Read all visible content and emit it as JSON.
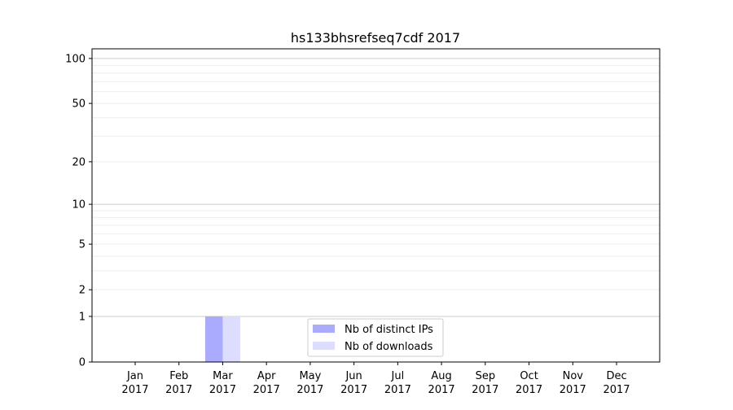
{
  "chart_data": {
    "type": "bar",
    "title": "hs133bhsrefseq7cdf 2017",
    "xlabel": "",
    "ylabel": "",
    "categories": [
      "Jan\n2017",
      "Feb\n2017",
      "Mar\n2017",
      "Apr\n2017",
      "May\n2017",
      "Jun\n2017",
      "Jul\n2017",
      "Aug\n2017",
      "Sep\n2017",
      "Oct\n2017",
      "Nov\n2017",
      "Dec\n2017"
    ],
    "category_labels": [
      [
        "Jan",
        "2017"
      ],
      [
        "Feb",
        "2017"
      ],
      [
        "Mar",
        "2017"
      ],
      [
        "Apr",
        "2017"
      ],
      [
        "May",
        "2017"
      ],
      [
        "Jun",
        "2017"
      ],
      [
        "Jul",
        "2017"
      ],
      [
        "Aug",
        "2017"
      ],
      [
        "Sep",
        "2017"
      ],
      [
        "Oct",
        "2017"
      ],
      [
        "Nov",
        "2017"
      ],
      [
        "Dec",
        "2017"
      ]
    ],
    "series": [
      {
        "name": "Nb of distinct IPs",
        "color": "#aaaaff",
        "values": [
          0,
          0,
          1,
          0,
          0,
          0,
          0,
          0,
          0,
          0,
          0,
          0
        ]
      },
      {
        "name": "Nb of downloads",
        "color": "#ddddff",
        "values": [
          0,
          0,
          1,
          0,
          0,
          0,
          0,
          0,
          0,
          0,
          0,
          0
        ]
      }
    ],
    "yscale": "log(y+1)",
    "ylim": [
      0,
      116
    ],
    "yticks": [
      0,
      1,
      2,
      5,
      10,
      20,
      50,
      100
    ],
    "ytick_labels": [
      "0",
      "1",
      "2",
      "5",
      "10",
      "20",
      "50",
      "100"
    ],
    "grid": true,
    "legend": "bottom-center"
  }
}
